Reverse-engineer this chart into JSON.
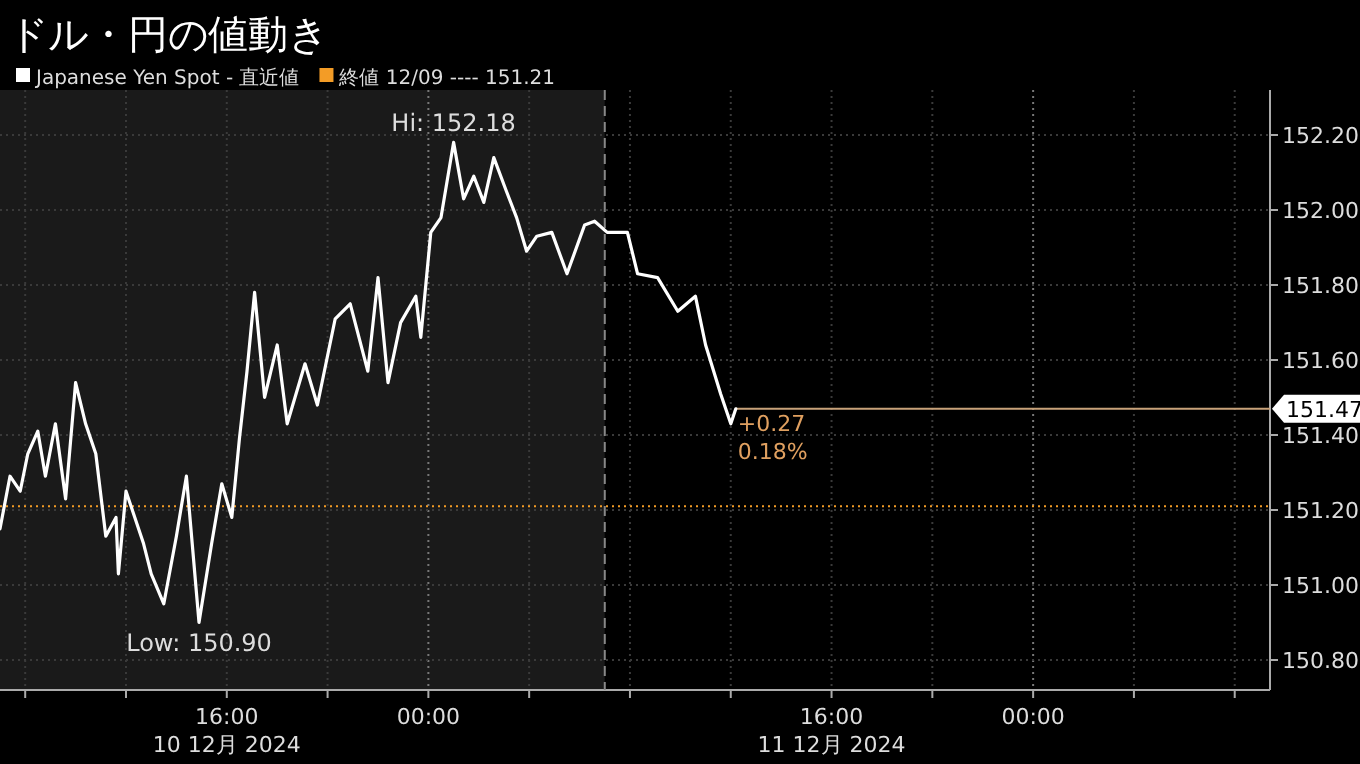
{
  "chart_data": {
    "type": "line",
    "title": "ドル・円の値動き",
    "x": [
      "2024-12-10T07:00",
      "2024-12-10T07:24",
      "2024-12-10T07:48",
      "2024-12-10T08:06",
      "2024-12-10T08:30",
      "2024-12-10T08:48",
      "2024-12-10T09:12",
      "2024-12-10T09:36",
      "2024-12-10T10:00",
      "2024-12-10T10:24",
      "2024-12-10T10:48",
      "2024-12-10T11:12",
      "2024-12-10T11:36",
      "2024-12-10T11:42",
      "2024-12-10T12:00",
      "2024-12-10T12:42",
      "2024-12-10T13:00",
      "2024-12-10T13:30",
      "2024-12-10T14:00",
      "2024-12-10T14:24",
      "2024-12-10T14:54",
      "2024-12-10T15:24",
      "2024-12-10T15:48",
      "2024-12-10T16:12",
      "2024-12-10T16:30",
      "2024-12-10T16:48",
      "2024-12-10T17:06",
      "2024-12-10T17:30",
      "2024-12-10T18:00",
      "2024-12-10T18:24",
      "2024-12-10T19:06",
      "2024-12-10T19:36",
      "2024-12-10T20:18",
      "2024-12-10T20:54",
      "2024-12-10T21:36",
      "2024-12-10T22:00",
      "2024-12-10T22:24",
      "2024-12-10T22:54",
      "2024-12-10T23:30",
      "2024-12-10T23:42",
      "2024-12-11T00:06",
      "2024-12-11T00:30",
      "2024-12-11T01:00",
      "2024-12-11T01:24",
      "2024-12-11T01:48",
      "2024-12-11T02:12",
      "2024-12-11T02:36",
      "2024-12-11T03:06",
      "2024-12-11T03:30",
      "2024-12-11T03:54",
      "2024-12-11T04:18",
      "2024-12-11T04:54",
      "2024-12-11T05:30",
      "2024-12-11T06:12",
      "2024-12-11T06:36",
      "2024-12-11T07:06",
      "2024-12-11T07:54",
      "2024-12-11T08:18",
      "2024-12-11T09:06",
      "2024-12-11T09:54",
      "2024-12-11T10:36",
      "2024-12-11T11:00",
      "2024-12-11T11:36",
      "2024-12-11T12:00",
      "2024-12-11T12:12"
    ],
    "series": [
      {
        "name": "Japanese Yen Spot - 直近値",
        "color": "#ffffff",
        "values": [
          151.15,
          151.29,
          151.25,
          151.35,
          151.41,
          151.29,
          151.43,
          151.23,
          151.54,
          151.43,
          151.35,
          151.13,
          151.18,
          151.03,
          151.25,
          151.11,
          151.03,
          150.95,
          151.13,
          151.29,
          150.9,
          151.11,
          151.27,
          151.18,
          151.39,
          151.57,
          151.78,
          151.5,
          151.64,
          151.43,
          151.59,
          151.48,
          151.71,
          151.75,
          151.57,
          151.82,
          151.54,
          151.7,
          151.77,
          151.66,
          151.94,
          151.98,
          152.18,
          152.03,
          152.09,
          152.02,
          152.14,
          152.05,
          151.98,
          151.89,
          151.93,
          151.94,
          151.83,
          151.96,
          151.97,
          151.94,
          151.94,
          151.83,
          151.82,
          151.73,
          151.77,
          151.64,
          151.51,
          151.43,
          151.47
        ]
      }
    ],
    "xlim": [
      "2024-12-10T07:00",
      "2024-12-12T09:24"
    ],
    "ylim": [
      150.72,
      152.32
    ],
    "xticks": [
      {
        "value": "2024-12-10T08:00",
        "label": null
      },
      {
        "value": "2024-12-10T12:00",
        "label": null
      },
      {
        "value": "2024-12-10T16:00",
        "label": "16:00\n10 12月 2024"
      },
      {
        "value": "2024-12-10T20:00",
        "label": null
      },
      {
        "value": "2024-12-11T00:00",
        "label": "00:00"
      },
      {
        "value": "2024-12-11T04:00",
        "label": null
      },
      {
        "value": "2024-12-11T08:00",
        "label": null
      },
      {
        "value": "2024-12-11T12:00",
        "label": null
      },
      {
        "value": "2024-12-11T16:00",
        "label": "16:00\n11 12月 2024"
      },
      {
        "value": "2024-12-11T20:00",
        "label": null
      },
      {
        "value": "2024-12-12T00:00",
        "label": "00:00"
      },
      {
        "value": "2024-12-12T04:00",
        "label": null
      },
      {
        "value": "2024-12-12T08:00",
        "label": null
      }
    ],
    "yticks": [
      {
        "value": 150.8,
        "label": "150.80"
      },
      {
        "value": 151.0,
        "label": "151.00"
      },
      {
        "value": 151.2,
        "label": "151.20"
      },
      {
        "value": 151.4,
        "label": "151.40"
      },
      {
        "value": 151.6,
        "label": "151.60"
      },
      {
        "value": 151.8,
        "label": "151.80"
      },
      {
        "value": 152.0,
        "label": "152.00"
      },
      {
        "value": 152.2,
        "label": "152.20"
      }
    ],
    "grid": true,
    "legend": "top left",
    "ref_lines": [
      {
        "axis": "y",
        "value": 151.21,
        "label": "終値 12/09 ---- 151.21",
        "color": "#f39c26",
        "line_style": "dotted"
      },
      {
        "axis": "y",
        "value": 151.47,
        "label": "151.47",
        "color": "#c8a27a",
        "line_style": "solid"
      },
      {
        "axis": "x",
        "value": "2024-12-11T07:00",
        "label": null,
        "color": "#888888",
        "line_style": "dashed"
      }
    ],
    "bands": [
      {
        "axis": "x",
        "from": "2024-12-10T07:00",
        "to": "2024-12-11T07:00",
        "label": null,
        "color": "#1a1a1a"
      }
    ],
    "annotations": [
      {
        "text": "Hi: 152.18",
        "x": "2024-12-11T01:00",
        "y": 152.18
      },
      {
        "text": "Low: 150.90",
        "x": "2024-12-10T14:54",
        "y": 150.9
      },
      {
        "text": "+0.27",
        "x": "2024-12-11T12:12",
        "y": 151.47
      },
      {
        "text": "0.18%",
        "x": "2024-12-11T12:12",
        "y": 151.47
      }
    ]
  }
}
